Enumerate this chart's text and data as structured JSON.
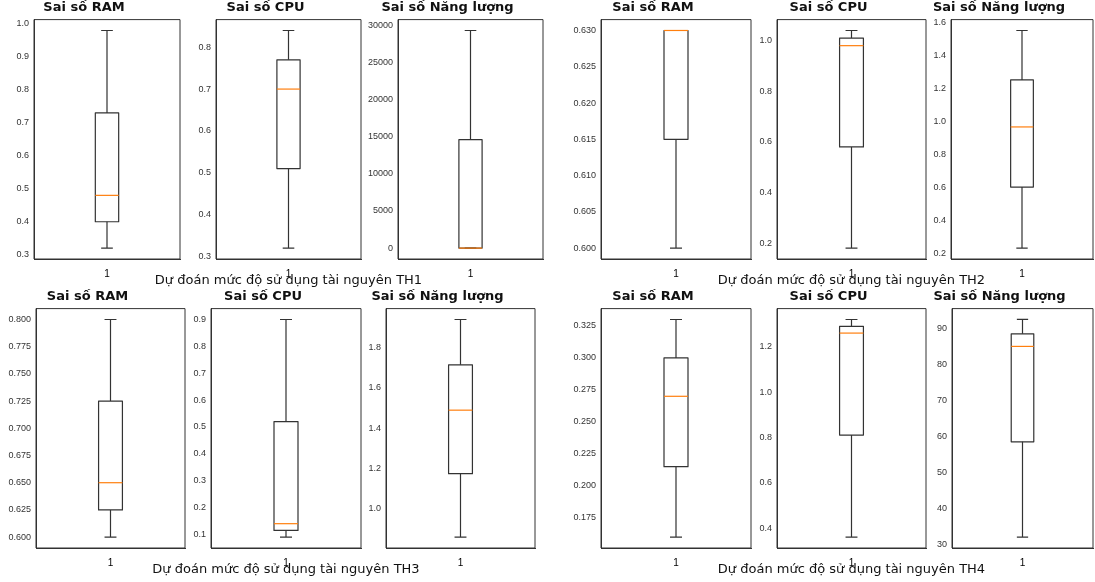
{
  "chart_data": [
    {
      "type": "box",
      "title": "Sai số RAM",
      "categories": [
        "1"
      ],
      "ylim": [
        0.287,
        1.013
      ],
      "yticks": [
        0.3,
        0.4,
        0.5,
        0.6,
        0.7,
        0.8,
        0.9,
        {
          "value": 1.0,
          "label": "1.0"
        }
      ],
      "boxes": [
        {
          "low": 0.32,
          "q1": 0.4,
          "median": 0.48,
          "q3": 0.73,
          "high": 0.98
        }
      ]
    },
    {
      "type": "box",
      "title": "Sai số CPU",
      "xlabel": "Dự đoán mức độ sử dụng tài nguyên TH1",
      "categories": [
        "1"
      ],
      "ylim": [
        0.294,
        0.866
      ],
      "yticks": [
        0.3,
        0.4,
        0.5,
        0.6,
        0.7,
        0.8
      ],
      "boxes": [
        {
          "low": 0.32,
          "q1": 0.51,
          "median": 0.7,
          "q3": 0.77,
          "high": 0.84
        }
      ]
    },
    {
      "type": "box",
      "title": "Sai số Năng lượng",
      "categories": [
        "1"
      ],
      "ylim": [
        -1465,
        30765
      ],
      "yticks": [
        0,
        5000,
        10000,
        15000,
        20000,
        25000,
        30000
      ],
      "boxes": [
        {
          "low": 0,
          "q1": 0,
          "median": 0,
          "q3": 14600,
          "high": 29300
        }
      ]
    },
    {
      "type": "box",
      "title": "Sai số RAM",
      "categories": [
        "1"
      ],
      "ylim": [
        0.5985,
        0.6315
      ],
      "yticks": [
        {
          "value": 0.6,
          "label": "0.600"
        },
        0.605,
        {
          "value": 0.61,
          "label": "0.610"
        },
        0.615,
        {
          "value": 0.62,
          "label": "0.620"
        },
        0.625,
        {
          "value": 0.63,
          "label": "0.630"
        }
      ],
      "boxes": [
        {
          "low": 0.6,
          "q1": 0.615,
          "median": 0.63,
          "q3": 0.63,
          "high": 0.63
        }
      ]
    },
    {
      "type": "box",
      "title": "Sai số CPU",
      "xlabel": "Dự đoán mức độ sử dụng tài nguyên TH2",
      "categories": [
        "1"
      ],
      "ylim": [
        0.137,
        1.083
      ],
      "yticks": [
        0.2,
        0.4,
        0.6,
        0.8,
        {
          "value": 1.0,
          "label": "1.0"
        }
      ],
      "boxes": [
        {
          "low": 0.18,
          "q1": 0.58,
          "median": 0.98,
          "q3": 1.01,
          "high": 1.04
        }
      ]
    },
    {
      "type": "box",
      "title": "Sai số Năng lượng",
      "categories": [
        "1"
      ],
      "ylim": [
        0.164,
        1.616
      ],
      "yticks": [
        0.2,
        0.4,
        0.6,
        0.8,
        {
          "value": 1.0,
          "label": "1.0"
        },
        1.2,
        1.4,
        1.6
      ],
      "boxes": [
        {
          "low": 0.23,
          "q1": 0.6,
          "median": 0.965,
          "q3": 1.25,
          "high": 1.55
        }
      ]
    },
    {
      "type": "box",
      "title": "Sai số RAM",
      "categories": [
        "1"
      ],
      "ylim": [
        0.59,
        0.81
      ],
      "yticks": [
        {
          "value": 0.6,
          "label": "0.600"
        },
        0.625,
        {
          "value": 0.65,
          "label": "0.650"
        },
        0.675,
        {
          "value": 0.7,
          "label": "0.700"
        },
        0.725,
        {
          "value": 0.75,
          "label": "0.750"
        },
        0.775,
        {
          "value": 0.8,
          "label": "0.800"
        }
      ],
      "boxes": [
        {
          "low": 0.6,
          "q1": 0.625,
          "median": 0.65,
          "q3": 0.725,
          "high": 0.8
        }
      ]
    },
    {
      "type": "box",
      "title": "Sai số CPU",
      "xlabel": "Dự đoán mức độ sử dụng tài nguyên TH3",
      "categories": [
        "1"
      ],
      "ylim": [
        0.0495,
        0.9405
      ],
      "yticks": [
        0.1,
        0.2,
        0.3,
        0.4,
        0.5,
        0.6,
        0.7,
        0.8,
        0.9
      ],
      "boxes": [
        {
          "low": 0.09,
          "q1": 0.115,
          "median": 0.14,
          "q3": 0.52,
          "high": 0.9
        }
      ]
    },
    {
      "type": "box",
      "title": "Sai số Năng lượng",
      "categories": [
        "1"
      ],
      "ylim": [
        0.806,
        1.994
      ],
      "yticks": [
        {
          "value": 1.0,
          "label": "1.0"
        },
        1.2,
        1.4,
        1.6,
        1.8
      ],
      "boxes": [
        {
          "low": 0.86,
          "q1": 1.175,
          "median": 1.49,
          "q3": 1.715,
          "high": 1.94
        }
      ]
    },
    {
      "type": "box",
      "title": "Sai số RAM",
      "categories": [
        "1"
      ],
      "ylim": [
        0.1515,
        0.3385
      ],
      "yticks": [
        0.175,
        {
          "value": 0.2,
          "label": "0.200"
        },
        0.225,
        {
          "value": 0.25,
          "label": "0.250"
        },
        0.275,
        {
          "value": 0.3,
          "label": "0.300"
        },
        0.325
      ],
      "boxes": [
        {
          "low": 0.16,
          "q1": 0.215,
          "median": 0.27,
          "q3": 0.3,
          "high": 0.33
        }
      ]
    },
    {
      "type": "box",
      "title": "Sai số CPU",
      "xlabel": "Dự đoán mức độ sử dụng tài nguyên TH4",
      "categories": [
        "1"
      ],
      "ylim": [
        0.312,
        1.368
      ],
      "yticks": [
        0.4,
        0.6,
        0.8,
        {
          "value": 1.0,
          "label": "1.0"
        },
        1.2
      ],
      "boxes": [
        {
          "low": 0.36,
          "q1": 0.81,
          "median": 1.26,
          "q3": 1.29,
          "high": 1.32
        }
      ]
    },
    {
      "type": "box",
      "title": "Sai số Năng lượng",
      "categories": [
        "1"
      ],
      "ylim": [
        29,
        95.5
      ],
      "yticks": [
        30,
        40,
        50,
        60,
        70,
        80,
        90
      ],
      "boxes": [
        {
          "low": 32,
          "q1": 58.5,
          "median": 85,
          "q3": 88.5,
          "high": 92.5
        }
      ]
    }
  ]
}
